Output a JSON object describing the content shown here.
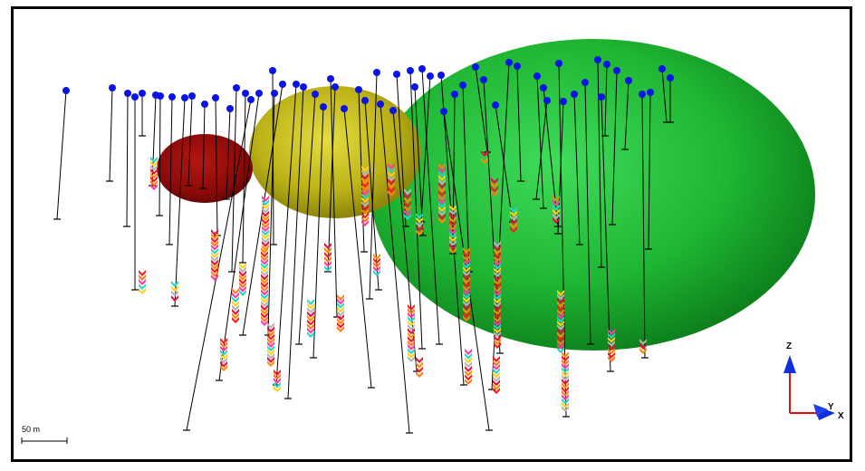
{
  "scene": {
    "type": "3d-drillhole-view",
    "bodies": [
      {
        "name": "red-ellipsoid",
        "color": "#8b0a08"
      },
      {
        "name": "yellow-ellipsoid",
        "color": "#c8be1a"
      },
      {
        "name": "green-ellipsoid",
        "color": "#1fa832"
      }
    ],
    "collar_color": "#0a14e6",
    "trace_color": "#000000"
  },
  "scale_bar": {
    "label": "50 m"
  },
  "axes": {
    "z": "Z",
    "y": "Y",
    "x": "X",
    "z_color": "#1030e0",
    "x_color": "#e01010"
  }
}
